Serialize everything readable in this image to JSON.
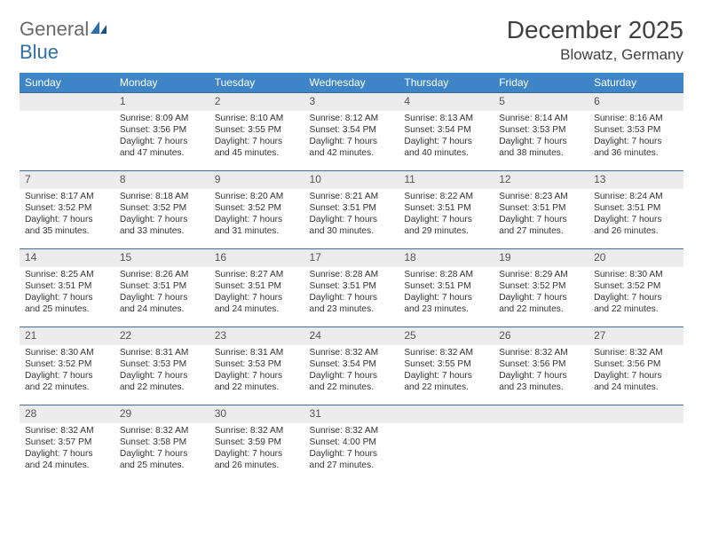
{
  "logo": {
    "text_left": "General",
    "text_right": "Blue"
  },
  "title": "December 2025",
  "location": "Blowatz, Germany",
  "weekdays": [
    "Sunday",
    "Monday",
    "Tuesday",
    "Wednesday",
    "Thursday",
    "Friday",
    "Saturday"
  ],
  "colors": {
    "header_bg": "#3d85c6",
    "header_text": "#ffffff",
    "daynum_bg": "#ececec",
    "row_border": "#3d6a9a",
    "body_text": "#333333"
  },
  "start_offset": 1,
  "days": [
    {
      "n": 1,
      "sunrise": "8:09 AM",
      "sunset": "3:56 PM",
      "daylight": "7 hours and 47 minutes."
    },
    {
      "n": 2,
      "sunrise": "8:10 AM",
      "sunset": "3:55 PM",
      "daylight": "7 hours and 45 minutes."
    },
    {
      "n": 3,
      "sunrise": "8:12 AM",
      "sunset": "3:54 PM",
      "daylight": "7 hours and 42 minutes."
    },
    {
      "n": 4,
      "sunrise": "8:13 AM",
      "sunset": "3:54 PM",
      "daylight": "7 hours and 40 minutes."
    },
    {
      "n": 5,
      "sunrise": "8:14 AM",
      "sunset": "3:53 PM",
      "daylight": "7 hours and 38 minutes."
    },
    {
      "n": 6,
      "sunrise": "8:16 AM",
      "sunset": "3:53 PM",
      "daylight": "7 hours and 36 minutes."
    },
    {
      "n": 7,
      "sunrise": "8:17 AM",
      "sunset": "3:52 PM",
      "daylight": "7 hours and 35 minutes."
    },
    {
      "n": 8,
      "sunrise": "8:18 AM",
      "sunset": "3:52 PM",
      "daylight": "7 hours and 33 minutes."
    },
    {
      "n": 9,
      "sunrise": "8:20 AM",
      "sunset": "3:52 PM",
      "daylight": "7 hours and 31 minutes."
    },
    {
      "n": 10,
      "sunrise": "8:21 AM",
      "sunset": "3:51 PM",
      "daylight": "7 hours and 30 minutes."
    },
    {
      "n": 11,
      "sunrise": "8:22 AM",
      "sunset": "3:51 PM",
      "daylight": "7 hours and 29 minutes."
    },
    {
      "n": 12,
      "sunrise": "8:23 AM",
      "sunset": "3:51 PM",
      "daylight": "7 hours and 27 minutes."
    },
    {
      "n": 13,
      "sunrise": "8:24 AM",
      "sunset": "3:51 PM",
      "daylight": "7 hours and 26 minutes."
    },
    {
      "n": 14,
      "sunrise": "8:25 AM",
      "sunset": "3:51 PM",
      "daylight": "7 hours and 25 minutes."
    },
    {
      "n": 15,
      "sunrise": "8:26 AM",
      "sunset": "3:51 PM",
      "daylight": "7 hours and 24 minutes."
    },
    {
      "n": 16,
      "sunrise": "8:27 AM",
      "sunset": "3:51 PM",
      "daylight": "7 hours and 24 minutes."
    },
    {
      "n": 17,
      "sunrise": "8:28 AM",
      "sunset": "3:51 PM",
      "daylight": "7 hours and 23 minutes."
    },
    {
      "n": 18,
      "sunrise": "8:28 AM",
      "sunset": "3:51 PM",
      "daylight": "7 hours and 23 minutes."
    },
    {
      "n": 19,
      "sunrise": "8:29 AM",
      "sunset": "3:52 PM",
      "daylight": "7 hours and 22 minutes."
    },
    {
      "n": 20,
      "sunrise": "8:30 AM",
      "sunset": "3:52 PM",
      "daylight": "7 hours and 22 minutes."
    },
    {
      "n": 21,
      "sunrise": "8:30 AM",
      "sunset": "3:52 PM",
      "daylight": "7 hours and 22 minutes."
    },
    {
      "n": 22,
      "sunrise": "8:31 AM",
      "sunset": "3:53 PM",
      "daylight": "7 hours and 22 minutes."
    },
    {
      "n": 23,
      "sunrise": "8:31 AM",
      "sunset": "3:53 PM",
      "daylight": "7 hours and 22 minutes."
    },
    {
      "n": 24,
      "sunrise": "8:32 AM",
      "sunset": "3:54 PM",
      "daylight": "7 hours and 22 minutes."
    },
    {
      "n": 25,
      "sunrise": "8:32 AM",
      "sunset": "3:55 PM",
      "daylight": "7 hours and 22 minutes."
    },
    {
      "n": 26,
      "sunrise": "8:32 AM",
      "sunset": "3:56 PM",
      "daylight": "7 hours and 23 minutes."
    },
    {
      "n": 27,
      "sunrise": "8:32 AM",
      "sunset": "3:56 PM",
      "daylight": "7 hours and 24 minutes."
    },
    {
      "n": 28,
      "sunrise": "8:32 AM",
      "sunset": "3:57 PM",
      "daylight": "7 hours and 24 minutes."
    },
    {
      "n": 29,
      "sunrise": "8:32 AM",
      "sunset": "3:58 PM",
      "daylight": "7 hours and 25 minutes."
    },
    {
      "n": 30,
      "sunrise": "8:32 AM",
      "sunset": "3:59 PM",
      "daylight": "7 hours and 26 minutes."
    },
    {
      "n": 31,
      "sunrise": "8:32 AM",
      "sunset": "4:00 PM",
      "daylight": "7 hours and 27 minutes."
    }
  ],
  "labels": {
    "sunrise": "Sunrise: ",
    "sunset": "Sunset: ",
    "daylight": "Daylight: "
  }
}
